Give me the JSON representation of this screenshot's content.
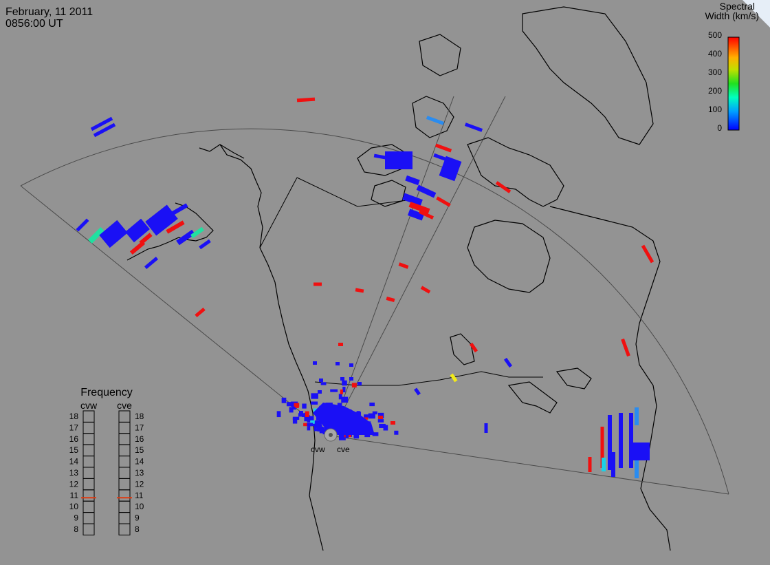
{
  "header": {
    "date": "February, 11 2011",
    "time": "0856:00 UT"
  },
  "colorbar": {
    "title_line1": "Spectral",
    "title_line2": "Width (km/s)",
    "ticks": [
      "500",
      "400",
      "300",
      "200",
      "100",
      "0"
    ]
  },
  "colors": {
    "background": "#939393",
    "low": "#1a10f5",
    "cyan": "#1ad1e8",
    "teal": "#20e0a0",
    "sky": "#2a8cf0",
    "yellow": "#f2ea18",
    "red": "#f01010"
  },
  "radar": {
    "west_label": "cvw",
    "east_label": "cve"
  },
  "frequency_panel": {
    "title": "Frequency",
    "col_west": "cvw",
    "col_east": "cve",
    "levels": [
      "18",
      "17",
      "16",
      "15",
      "14",
      "13",
      "12",
      "11",
      "10",
      "9",
      "8"
    ],
    "current_west": 10.8,
    "current_east": 10.8
  }
}
